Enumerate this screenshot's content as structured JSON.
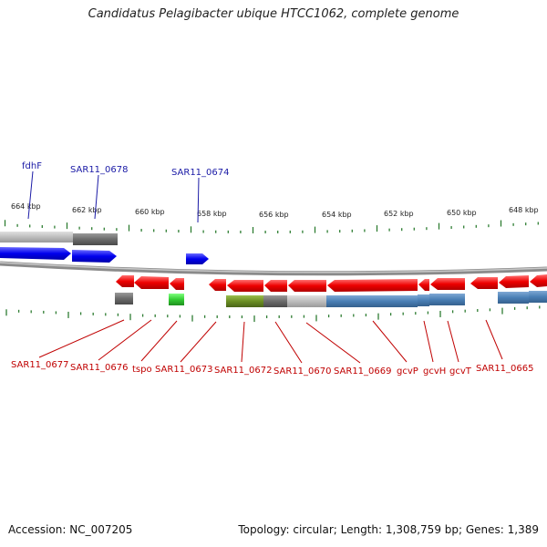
{
  "title": "Candidatus Pelagibacter ubique HTCC1062, complete genome",
  "footer": {
    "accession": "Accession: NC_007205",
    "summary": "Topology: circular; Length: 1,308,759 bp; Genes: 1,389"
  },
  "ruler": [
    "664 kbp",
    "662 kbp",
    "660 kbp",
    "658 kbp",
    "656 kbp",
    "654 kbp",
    "652 kbp",
    "650 kbp",
    "648 kbp"
  ],
  "plus_labels": [
    "fdhF",
    "SAR11_0678",
    "SAR11_0674"
  ],
  "minus_labels": [
    "SAR11_0677",
    "SAR11_0676",
    "tspo",
    "SAR11_0673",
    "SAR11_0672",
    "SAR11_0670",
    "SAR11_0669",
    "gcvP",
    "gcvH",
    "gcvT",
    "SAR11_0665"
  ],
  "colors": {
    "plus_strand": "#0000ee",
    "minus_strand": "#ee0000",
    "backbone": "#8a8a8a",
    "ticks": "#2e7d32",
    "feature_blue": "#4a7fb5",
    "feature_gray": "#6b6b6b",
    "feature_lightgray": "#bdbdbd",
    "feature_green": "#33cc33",
    "feature_olive": "#6b8e23"
  }
}
